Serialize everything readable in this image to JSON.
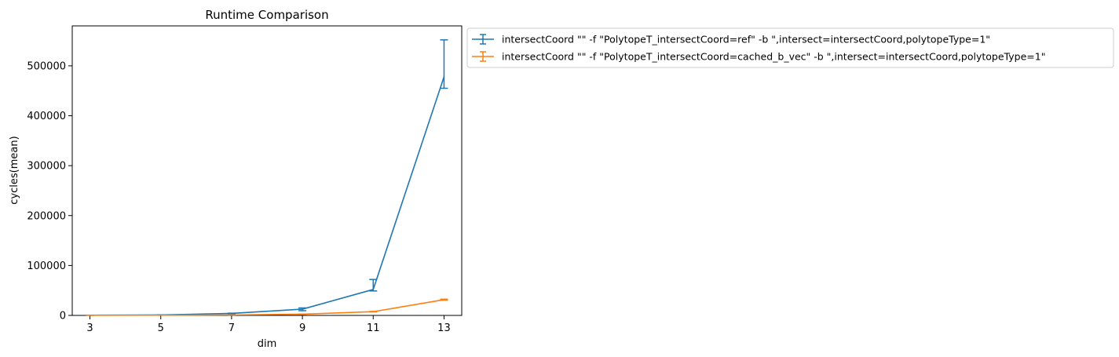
{
  "chart_data": {
    "type": "line",
    "title": "Runtime Comparison",
    "xlabel": "dim",
    "ylabel": "cycles(mean)",
    "x": [
      3,
      5,
      7,
      9,
      11,
      13
    ],
    "xticks": [
      "3",
      "5",
      "7",
      "9",
      "11",
      "13"
    ],
    "xlim": [
      2.5,
      13.5
    ],
    "ylim": [
      0,
      580000
    ],
    "yticks": [
      "0",
      "100000",
      "200000",
      "300000",
      "400000",
      "500000"
    ],
    "yticks_values": [
      0,
      100000,
      200000,
      300000,
      400000,
      500000
    ],
    "grid": false,
    "legend": "outside-upper-right",
    "series": [
      {
        "name": "intersectCoord \"\" -f \"PolytopeT_intersectCoord=ref\" -b \",intersect=intersectCoord,polytopeType=1\"",
        "color": "#1f77b4",
        "values": [
          400,
          1000,
          4000,
          12500,
          52000,
          478000
        ],
        "err_low": [
          300,
          800,
          3500,
          9500,
          49000,
          455000
        ],
        "err_high": [
          500,
          1200,
          4500,
          15000,
          72000,
          552000
        ]
      },
      {
        "name": "intersectCoord \"\" -f \"PolytopeT_intersectCoord=cached_b_vec\" -b \",intersect=intersectCoord,polytopeType=1\"",
        "color": "#ff7f0e",
        "values": [
          200,
          400,
          1000,
          2500,
          7500,
          31500
        ],
        "err_low": [
          150,
          350,
          900,
          2300,
          7000,
          30500
        ],
        "err_high": [
          250,
          450,
          1100,
          2700,
          8000,
          32500
        ]
      }
    ]
  }
}
